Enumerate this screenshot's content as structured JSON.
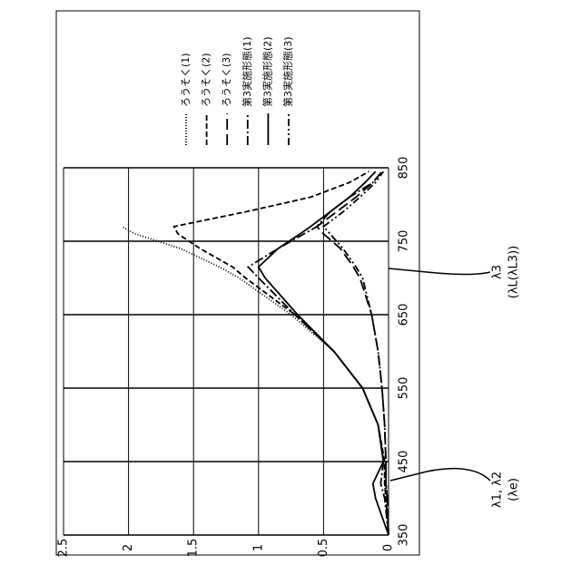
{
  "chart_data": {
    "type": "line",
    "x": [
      350,
      400,
      420,
      450,
      500,
      550,
      600,
      650,
      700,
      715,
      740,
      760,
      770,
      790,
      810,
      830,
      845
    ],
    "series": [
      {
        "name": "ろうそく(1)",
        "color": "#000000",
        "dash": "1,2",
        "values": [
          0,
          0.02,
          0.03,
          0.03,
          0.08,
          0.2,
          0.42,
          0.75,
          1.15,
          1.3,
          1.6,
          1.95,
          2.05,
          null,
          null,
          null,
          null
        ]
      },
      {
        "name": "ろうそく(2)",
        "color": "#000000",
        "dash": "6,3",
        "values": [
          0,
          0.02,
          0.03,
          0.03,
          0.08,
          0.2,
          0.42,
          0.72,
          1.1,
          1.2,
          1.45,
          1.62,
          1.65,
          1.1,
          0.6,
          0.3,
          0.15
        ]
      },
      {
        "name": "ろうそく(3)",
        "color": "#000000",
        "dash": "12,5",
        "values": [
          0,
          0.01,
          0.02,
          0.02,
          0.03,
          0.05,
          0.08,
          0.13,
          0.22,
          0.27,
          0.37,
          0.5,
          0.55,
          0.4,
          0.25,
          0.12,
          0.05
        ]
      },
      {
        "name": "第3実施形態(1)",
        "color": "#000000",
        "dash": "10,3,2,3",
        "values": [
          0,
          0.03,
          0.06,
          0.04,
          0.08,
          0.2,
          0.42,
          0.72,
          1.0,
          1.08,
          0.85,
          0.65,
          0.55,
          0.45,
          0.3,
          0.12,
          0.05
        ]
      },
      {
        "name": "第3実施形態(2)",
        "color": "#000000",
        "dash": "",
        "values": [
          0,
          0.1,
          0.12,
          0.04,
          0.08,
          0.2,
          0.42,
          0.7,
          0.95,
          1.0,
          0.85,
          0.68,
          0.6,
          0.45,
          0.3,
          0.18,
          0.1
        ]
      },
      {
        "name": "第3実施形態(3)",
        "color": "#000000",
        "dash": "8,3,2,3,2,3",
        "values": [
          0,
          0.01,
          0.02,
          0.02,
          0.03,
          0.05,
          0.08,
          0.13,
          0.2,
          0.25,
          0.35,
          0.45,
          0.5,
          0.35,
          0.22,
          0.1,
          0.04
        ]
      }
    ],
    "xlim": [
      350,
      850
    ],
    "xticks": [
      350,
      450,
      550,
      650,
      750,
      850
    ],
    "ylim": [
      0,
      2.5
    ],
    "yticks": [
      0,
      0.5,
      1,
      1.5,
      2,
      2.5
    ],
    "grid": true,
    "annotations": [
      "λ1, λ2",
      "(λe)",
      "λ3",
      "(λL(λL3))"
    ]
  }
}
